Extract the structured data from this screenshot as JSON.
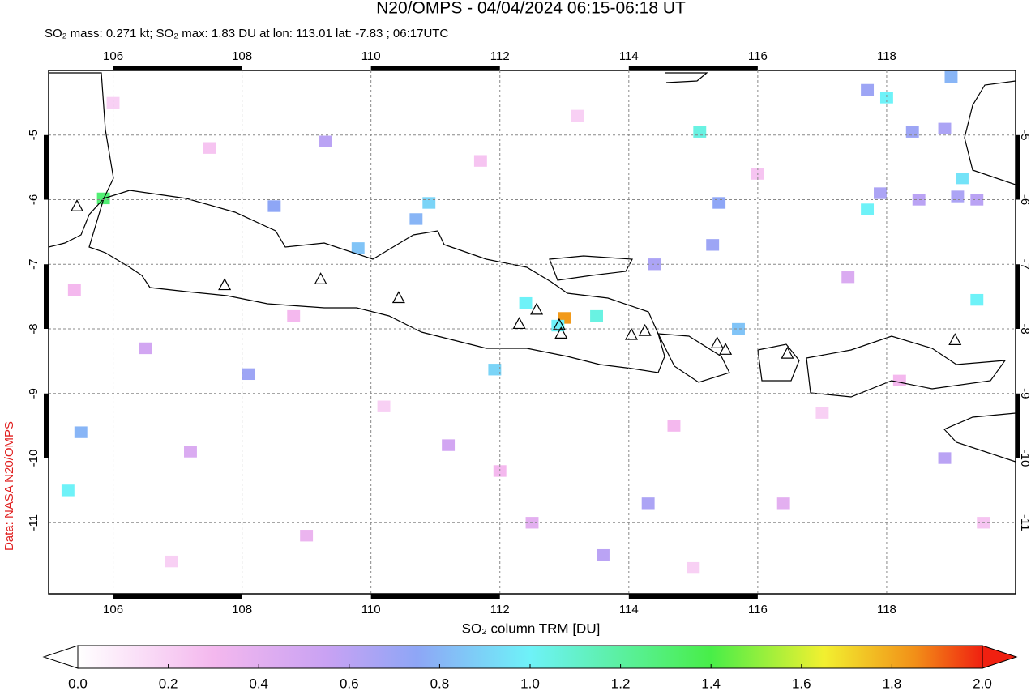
{
  "map_data": {
    "type": "map",
    "title": "N20/OMPS - 04/04/2024 06:15-06:18 UT",
    "subtitle": "SO₂ mass: 0.271 kt; SO₂ max: 1.83 DU at lon: 113.01 lat: -7.83 ; 06:17UTC",
    "source_label": "Data: NASA N20/OMPS",
    "colorbar_label": "SO₂ column TRM [DU]",
    "xlim": [
      105,
      120
    ],
    "ylim": [
      -12.1,
      -4
    ],
    "xticks": [
      106,
      108,
      110,
      112,
      114,
      116,
      118
    ],
    "yticks": [
      -5,
      -6,
      -7,
      -8,
      -9,
      -10,
      -11
    ],
    "grid": true,
    "colorbar_lim": [
      0,
      2
    ],
    "colorbar_ticks": [
      {
        "value": 0,
        "label": "0.0"
      },
      {
        "value": 0.2,
        "label": "0.2"
      },
      {
        "value": 0.4,
        "label": "0.4"
      },
      {
        "value": 0.6,
        "label": "0.6"
      },
      {
        "value": 0.8,
        "label": "0.8"
      },
      {
        "value": 1,
        "label": "1.0"
      },
      {
        "value": 1.2,
        "label": "1.2"
      },
      {
        "value": 1.4,
        "label": "1.4"
      },
      {
        "value": 1.6,
        "label": "1.6"
      },
      {
        "value": 1.8,
        "label": "1.8"
      },
      {
        "value": 2,
        "label": "2.0"
      }
    ],
    "colormap": {
      "stops": [
        0,
        0.3,
        0.55,
        0.75,
        1.0,
        1.4,
        1.65,
        1.85,
        2.0
      ],
      "colors": [
        "#ffffff",
        "#f4b8ee",
        "#c9a2f3",
        "#8ea6f6",
        "#6ef2f8",
        "#48ee48",
        "#f2f030",
        "#f29018",
        "#f02010"
      ]
    },
    "pixels": {
      "lon": [
        113.0,
        112.9,
        112.4,
        113.5,
        105.85,
        105.3,
        115.1,
        117.7,
        119.4,
        118.0,
        119.0,
        117.7,
        118.4,
        118.9,
        117.9,
        118.5,
        119.1,
        119.4,
        119.17,
        115.4,
        115.3,
        114.4,
        111.92,
        110.9,
        110.7,
        109.8,
        108.5,
        109.3,
        105.5,
        108.1,
        114.3,
        113.6,
        115.7,
        118.9,
        106.5,
        107.2,
        111.2,
        112.5,
        116.4,
        117.4,
        109.0,
        106.0,
        107.5,
        108.8,
        110.2,
        111.7,
        113.2,
        114.7,
        116.0,
        117.0,
        119.5,
        105.4,
        106.9,
        112.0,
        115.0,
        118.2
      ],
      "lat": [
        -7.83,
        -7.95,
        -7.6,
        -7.8,
        -5.98,
        -10.5,
        -4.95,
        -6.15,
        -7.55,
        -4.42,
        -4.1,
        -4.3,
        -4.95,
        -4.9,
        -5.9,
        -6.0,
        -5.95,
        -6.0,
        -5.67,
        -6.05,
        -6.7,
        -7.0,
        -8.63,
        -6.05,
        -6.3,
        -6.75,
        -6.1,
        -5.1,
        -9.6,
        -8.7,
        -10.7,
        -11.5,
        -8.0,
        -10.0,
        -8.3,
        -9.9,
        -9.8,
        -11.0,
        -10.7,
        -7.2,
        -11.2,
        -4.5,
        -5.2,
        -7.8,
        -9.2,
        -5.4,
        -4.7,
        -9.5,
        -5.6,
        -9.3,
        -11.0,
        -7.4,
        -11.6,
        -10.2,
        -11.7,
        -8.8
      ],
      "values": [
        1.83,
        1.0,
        1.0,
        1.05,
        1.3,
        1.0,
        1.05,
        1.0,
        1.0,
        1.0,
        0.8,
        0.7,
        0.7,
        0.65,
        0.65,
        0.6,
        0.65,
        0.6,
        0.95,
        0.75,
        0.7,
        0.65,
        0.9,
        0.9,
        0.8,
        0.85,
        0.75,
        0.6,
        0.8,
        0.7,
        0.65,
        0.6,
        0.85,
        0.6,
        0.5,
        0.45,
        0.5,
        0.4,
        0.4,
        0.45,
        0.35,
        0.2,
        0.25,
        0.3,
        0.2,
        0.25,
        0.2,
        0.3,
        0.25,
        0.2,
        0.25,
        0.3,
        0.2,
        0.3,
        0.2,
        0.3
      ]
    },
    "volcanoes": {
      "lon": [
        105.44,
        107.73,
        109.22,
        110.43,
        112.3,
        112.57,
        112.92,
        112.95,
        114.04,
        114.25,
        115.37,
        115.5,
        116.46,
        119.06
      ],
      "lat": [
        -6.11,
        -7.33,
        -7.24,
        -7.53,
        -7.93,
        -7.71,
        -7.95,
        -8.08,
        -8.1,
        -8.04,
        -8.23,
        -8.33,
        -8.39,
        -8.18
      ]
    }
  }
}
